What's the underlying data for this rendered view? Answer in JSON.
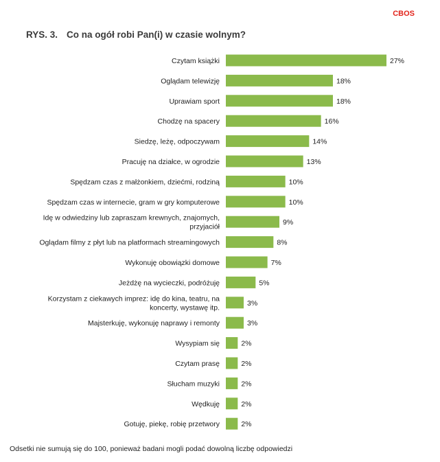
{
  "brand": "CBOS",
  "figure": {
    "label": "RYS. 3.",
    "title": "Co na ogół robi Pan(i) w czasie wolnym?"
  },
  "footnote": "Odsetki nie sumują się do 100, ponieważ badani mogli podać dowolną liczbę odpowiedzi",
  "colors": {
    "bar": "#8bba4b",
    "brand": "#e2231a"
  },
  "chart_data": {
    "type": "bar",
    "orientation": "horizontal",
    "title": "Co na ogół robi Pan(i) w czasie wolnym?",
    "categories": [
      [
        "Czytam książki"
      ],
      [
        "Oglądam telewizję"
      ],
      [
        "Uprawiam sport"
      ],
      [
        "Chodzę na spacery"
      ],
      [
        "Siedzę, leżę, odpoczywam"
      ],
      [
        "Pracuję na działce, w ogrodzie"
      ],
      [
        "Spędzam czas z małżonkiem, dziećmi, rodziną"
      ],
      [
        "Spędzam czas w internecie, gram w gry komputerowe"
      ],
      [
        "Idę w odwiedziny lub zapraszam krewnych, znajomych,",
        "przyjaciół"
      ],
      [
        "Oglądam filmy z płyt lub na platformach streamingowych"
      ],
      [
        "Wykonuję obowiązki domowe"
      ],
      [
        "Jeżdżę na wycieczki, podróżuję"
      ],
      [
        "Korzystam z ciekawych imprez: idę do kina, teatru, na",
        "koncerty, wystawę itp."
      ],
      [
        "Majsterkuję, wykonuję naprawy i remonty"
      ],
      [
        "Wysypiam się"
      ],
      [
        "Czytam prasę"
      ],
      [
        "Słucham muzyki"
      ],
      [
        "Wędkuję"
      ],
      [
        "Gotuję, piekę, robię przetwory"
      ]
    ],
    "values": [
      27,
      18,
      18,
      16,
      14,
      13,
      10,
      10,
      9,
      8,
      7,
      5,
      3,
      3,
      2,
      2,
      2,
      2,
      2
    ],
    "value_labels": [
      "27%",
      "18%",
      "18%",
      "16%",
      "14%",
      "13%",
      "10%",
      "10%",
      "9%",
      "8%",
      "7%",
      "5%",
      "3%",
      "3%",
      "2%",
      "2%",
      "2%",
      "2%",
      "2%"
    ],
    "xlim": [
      0,
      27
    ],
    "grid": false,
    "legend": "none"
  }
}
